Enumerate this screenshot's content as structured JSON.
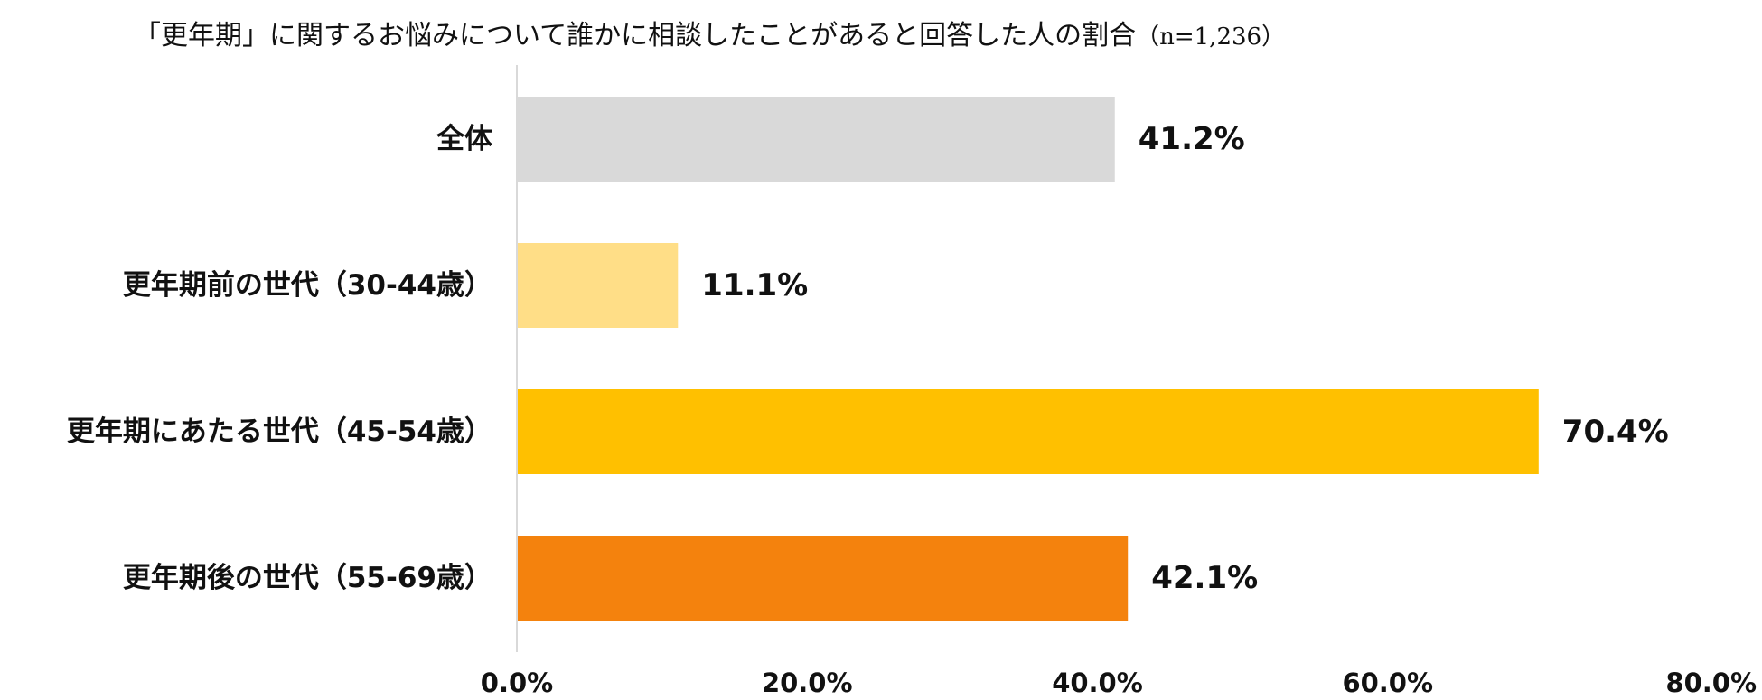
{
  "chart_data": {
    "type": "bar",
    "orientation": "horizontal",
    "title": "「更年期」に関するお悩みについて誰かに相談したことがあると回答した人の割合",
    "sample_size_label": "（n=1,236）",
    "categories": [
      "全体",
      "更年期前の世代（30-44歳）",
      "更年期にあたる世代（45-54歳）",
      "更年期後の世代（55-69歳）"
    ],
    "values": [
      41.2,
      11.1,
      70.4,
      42.1
    ],
    "value_labels": [
      "41.2%",
      "11.1%",
      "70.4%",
      "42.1%"
    ],
    "colors": [
      "#d9d9d9",
      "#ffde87",
      "#ffc000",
      "#f4820d"
    ],
    "xlim": [
      0,
      80
    ],
    "x_ticks": [
      0,
      20,
      40,
      60,
      80
    ],
    "x_tick_labels": [
      "0.0%",
      "20.0%",
      "40.0%",
      "60.0%",
      "80.0%"
    ],
    "grid": false,
    "legend": "none",
    "axis_color": "#d9d9d9"
  }
}
